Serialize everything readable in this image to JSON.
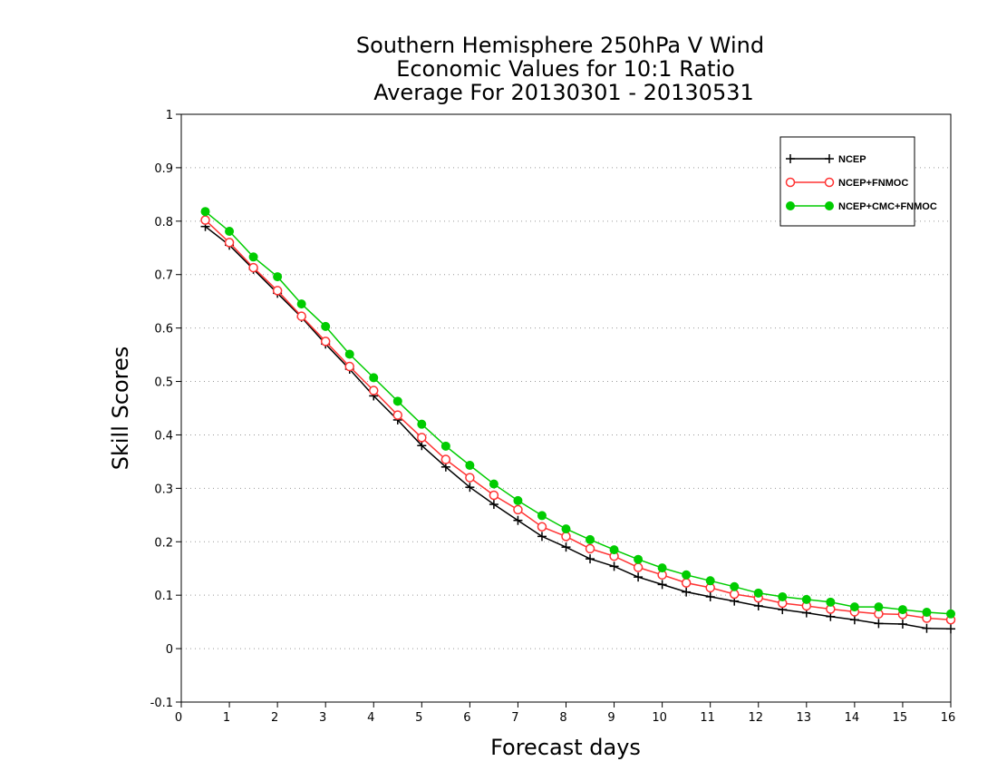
{
  "chart_data": {
    "type": "line",
    "title": [
      "Southern Hemisphere 250hPa V Wind",
      "Economic Values for 10:1 Ratio",
      "Average For 20130301 - 20130531"
    ],
    "xlabel": "Forecast days",
    "ylabel": "Skill Scores",
    "xlim": [
      0,
      16
    ],
    "ylim": [
      -0.1,
      1
    ],
    "xticks": [
      "0",
      "1",
      "2",
      "3",
      "4",
      "5",
      "6",
      "7",
      "8",
      "9",
      "10",
      "11",
      "12",
      "13",
      "14",
      "15",
      "16"
    ],
    "yticks": [
      "-0.1",
      "0",
      "0.1",
      "0.2",
      "0.3",
      "0.4",
      "0.5",
      "0.6",
      "0.7",
      "0.8",
      "0.9",
      "1"
    ],
    "grid": true,
    "legend_position": "top-right",
    "x": [
      0.5,
      1,
      1.5,
      2,
      2.5,
      3,
      3.5,
      4,
      4.5,
      5,
      5.5,
      6,
      6.5,
      7,
      7.5,
      8,
      8.5,
      9,
      9.5,
      10,
      10.5,
      11,
      11.5,
      12,
      12.5,
      13,
      13.5,
      14,
      14.5,
      15,
      15.5,
      16
    ],
    "series": [
      {
        "name": "NCEP",
        "color": "#000000",
        "marker": "plus",
        "values": [
          0.79,
          0.755,
          0.71,
          0.665,
          0.62,
          0.57,
          0.523,
          0.473,
          0.428,
          0.38,
          0.34,
          0.302,
          0.27,
          0.24,
          0.21,
          0.19,
          0.168,
          0.154,
          0.134,
          0.12,
          0.106,
          0.097,
          0.089,
          0.08,
          0.073,
          0.067,
          0.06,
          0.054,
          0.047,
          0.046,
          0.038,
          0.037
        ]
      },
      {
        "name": "NCEP+FNMOC",
        "color": "#ff3333",
        "marker": "open-circle",
        "values": [
          0.802,
          0.76,
          0.713,
          0.67,
          0.622,
          0.575,
          0.528,
          0.483,
          0.437,
          0.395,
          0.354,
          0.32,
          0.287,
          0.26,
          0.228,
          0.21,
          0.187,
          0.173,
          0.152,
          0.138,
          0.123,
          0.114,
          0.102,
          0.095,
          0.085,
          0.08,
          0.074,
          0.069,
          0.065,
          0.064,
          0.057,
          0.054
        ]
      },
      {
        "name": "NCEP+CMC+FNMOC",
        "color": "#00cc00",
        "marker": "filled-circle",
        "values": [
          0.818,
          0.781,
          0.733,
          0.696,
          0.645,
          0.603,
          0.551,
          0.507,
          0.463,
          0.42,
          0.379,
          0.343,
          0.308,
          0.277,
          0.249,
          0.224,
          0.204,
          0.185,
          0.167,
          0.151,
          0.138,
          0.127,
          0.116,
          0.104,
          0.097,
          0.092,
          0.087,
          0.078,
          0.078,
          0.073,
          0.068,
          0.065
        ]
      }
    ]
  }
}
